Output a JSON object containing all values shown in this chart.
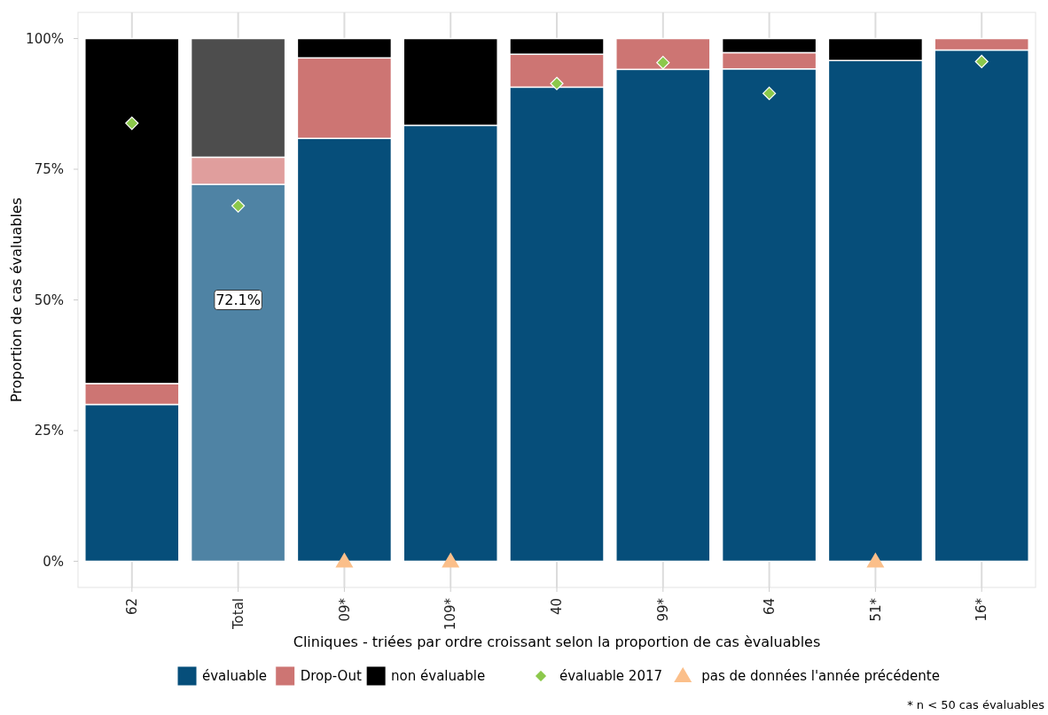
{
  "chart_data": {
    "type": "bar",
    "stacked": true,
    "xlabel": "Cliniques - triées par ordre croissant selon la proportion de cas èvaluables",
    "ylabel": "Proportion de cas évaluables",
    "categories": [
      "62",
      "Total",
      "09*",
      "109*",
      "40",
      "99*",
      "64",
      "51*",
      "16*"
    ],
    "series": [
      {
        "name": "évaluable",
        "color": "#064e7a",
        "colors": [
          "#064e7a",
          "#4f83a4",
          "#064e7a",
          "#064e7a",
          "#064e7a",
          "#064e7a",
          "#064e7a",
          "#064e7a",
          "#064e7a"
        ],
        "values": [
          30,
          72.1,
          80.9,
          83.4,
          90.7,
          94.1,
          94.2,
          95.8,
          97.8
        ]
      },
      {
        "name": "Drop-Out",
        "color": "#cd7573",
        "colors": [
          "#cd7573",
          "#e09e9d",
          "#cd7573",
          "#cd7573",
          "#cd7573",
          "#cd7573",
          "#cd7573",
          "#cd7573",
          "#cd7573"
        ],
        "values": [
          4,
          5.2,
          15.4,
          0,
          6.3,
          5.9,
          3.1,
          0,
          2.2
        ]
      },
      {
        "name": "non évaluable",
        "color": "#000000",
        "colors": [
          "#000000",
          "#4d4d4d",
          "#000000",
          "#000000",
          "#000000",
          "#000000",
          "#000000",
          "#000000",
          "#000000"
        ],
        "values": [
          66,
          22.7,
          3.7,
          16.6,
          3,
          0,
          2.7,
          4.2,
          0
        ]
      },
      {
        "name": "évaluable 2017",
        "type": "scatter",
        "marker": "diamond",
        "color": "#8cc84b",
        "x": [
          "62",
          "Total",
          "09*",
          "109*",
          "40",
          "99*",
          "64",
          "51*",
          "16*"
        ],
        "values": [
          83.8,
          68,
          null,
          null,
          91.4,
          95.4,
          89.5,
          null,
          95.6
        ]
      },
      {
        "name": "pas de données l'année précédente",
        "type": "scatter",
        "marker": "triangle",
        "color": "#fbbf8a",
        "x": [
          "62",
          "Total",
          "09*",
          "109*",
          "40",
          "99*",
          "64",
          "51*",
          "16*"
        ],
        "values": [
          null,
          null,
          0,
          0,
          null,
          null,
          null,
          0,
          null
        ]
      }
    ],
    "ylim": [
      -5,
      105
    ],
    "yticks": [
      {
        "value": 0,
        "label": "0%"
      },
      {
        "value": 25,
        "label": "25%"
      },
      {
        "value": 50,
        "label": "50%"
      },
      {
        "value": 75,
        "label": "75%"
      },
      {
        "value": 100,
        "label": "100%"
      }
    ],
    "grid": "x",
    "legend": "bottom",
    "annotations": [
      "72.1%",
      "* n < 50 cas évaluables"
    ]
  }
}
